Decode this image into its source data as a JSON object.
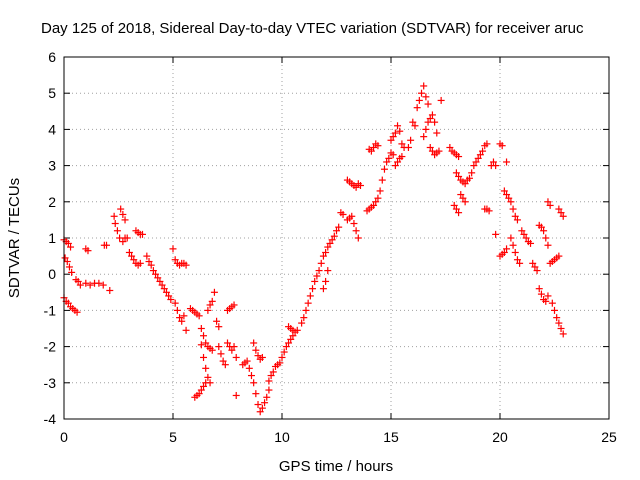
{
  "chart_data": {
    "type": "scatter",
    "title": "Day 125 of 2018, Sidereal Day-to-day VTEC variation (SDTVAR) for receiver aruc",
    "xlabel": "GPS time / hours",
    "ylabel": "SDTVAR / TECUs",
    "xlim": [
      0,
      25
    ],
    "ylim": [
      -4,
      6
    ],
    "xticks": [
      "0",
      "5",
      "10",
      "15",
      "20",
      "25"
    ],
    "yticks": [
      "-4",
      "-3",
      "-2",
      "-1",
      "0",
      "1",
      "2",
      "3",
      "4",
      "5",
      "6"
    ],
    "grid": true,
    "marker": "plus",
    "series": [
      {
        "name": "SDTVAR",
        "color": "#ff0000",
        "points": [
          [
            0.0,
            0.95
          ],
          [
            0.1,
            0.9
          ],
          [
            0.2,
            0.85
          ],
          [
            0.3,
            0.75
          ],
          [
            0.05,
            0.45
          ],
          [
            0.15,
            0.35
          ],
          [
            0.25,
            0.2
          ],
          [
            0.35,
            0.05
          ],
          [
            0.0,
            -0.65
          ],
          [
            0.1,
            -0.75
          ],
          [
            0.2,
            -0.8
          ],
          [
            0.3,
            -0.9
          ],
          [
            0.4,
            -0.95
          ],
          [
            0.5,
            -1.0
          ],
          [
            0.6,
            -1.05
          ],
          [
            0.55,
            -0.15
          ],
          [
            0.65,
            -0.2
          ],
          [
            0.75,
            -0.3
          ],
          [
            1.0,
            0.7
          ],
          [
            1.1,
            0.65
          ],
          [
            1.0,
            -0.25
          ],
          [
            1.2,
            -0.3
          ],
          [
            1.4,
            -0.25
          ],
          [
            1.6,
            -0.25
          ],
          [
            1.8,
            -0.3
          ],
          [
            1.85,
            0.8
          ],
          [
            1.95,
            0.8
          ],
          [
            2.1,
            -0.45
          ],
          [
            2.3,
            1.6
          ],
          [
            2.35,
            1.4
          ],
          [
            2.45,
            1.2
          ],
          [
            2.55,
            1.0
          ],
          [
            2.7,
            0.9
          ],
          [
            2.8,
            1.0
          ],
          [
            2.9,
            1.0
          ],
          [
            2.6,
            1.8
          ],
          [
            2.7,
            1.65
          ],
          [
            2.8,
            1.5
          ],
          [
            3.0,
            0.6
          ],
          [
            3.1,
            0.5
          ],
          [
            3.2,
            0.4
          ],
          [
            3.3,
            0.3
          ],
          [
            3.4,
            0.25
          ],
          [
            3.5,
            0.3
          ],
          [
            3.3,
            1.2
          ],
          [
            3.4,
            1.15
          ],
          [
            3.5,
            1.1
          ],
          [
            3.6,
            1.1
          ],
          [
            3.8,
            0.5
          ],
          [
            3.9,
            0.35
          ],
          [
            4.0,
            0.25
          ],
          [
            4.1,
            0.1
          ],
          [
            4.2,
            0.0
          ],
          [
            4.3,
            -0.1
          ],
          [
            4.4,
            -0.2
          ],
          [
            4.5,
            -0.3
          ],
          [
            4.6,
            -0.4
          ],
          [
            4.7,
            -0.5
          ],
          [
            4.8,
            -0.6
          ],
          [
            4.9,
            -0.7
          ],
          [
            5.0,
            0.7
          ],
          [
            5.1,
            0.4
          ],
          [
            5.2,
            0.3
          ],
          [
            5.3,
            0.25
          ],
          [
            5.4,
            0.3
          ],
          [
            5.5,
            0.3
          ],
          [
            5.6,
            0.25
          ],
          [
            5.1,
            -0.8
          ],
          [
            5.2,
            -1.0
          ],
          [
            5.3,
            -1.2
          ],
          [
            5.4,
            -1.3
          ],
          [
            5.5,
            -1.15
          ],
          [
            5.6,
            -1.55
          ],
          [
            5.8,
            -0.95
          ],
          [
            5.9,
            -1.0
          ],
          [
            6.0,
            -1.05
          ],
          [
            6.1,
            -1.1
          ],
          [
            6.2,
            -1.15
          ],
          [
            6.3,
            -1.5
          ],
          [
            6.4,
            -1.7
          ],
          [
            6.5,
            -1.9
          ],
          [
            6.6,
            -2.0
          ],
          [
            6.7,
            -2.05
          ],
          [
            6.8,
            -2.1
          ],
          [
            6.3,
            -1.95
          ],
          [
            6.4,
            -2.3
          ],
          [
            6.5,
            -2.6
          ],
          [
            6.6,
            -2.85
          ],
          [
            6.7,
            -3.0
          ],
          [
            6.0,
            -3.4
          ],
          [
            6.1,
            -3.35
          ],
          [
            6.2,
            -3.3
          ],
          [
            6.3,
            -3.2
          ],
          [
            6.4,
            -3.1
          ],
          [
            6.5,
            -3.0
          ],
          [
            6.6,
            -1.0
          ],
          [
            6.7,
            -0.85
          ],
          [
            6.8,
            -0.75
          ],
          [
            6.9,
            -0.5
          ],
          [
            7.0,
            -1.3
          ],
          [
            7.1,
            -1.45
          ],
          [
            7.1,
            -2.0
          ],
          [
            7.2,
            -2.2
          ],
          [
            7.3,
            -2.4
          ],
          [
            7.4,
            -2.5
          ],
          [
            7.5,
            -1.0
          ],
          [
            7.6,
            -0.95
          ],
          [
            7.7,
            -0.9
          ],
          [
            7.8,
            -0.85
          ],
          [
            7.5,
            -1.9
          ],
          [
            7.6,
            -2.0
          ],
          [
            7.7,
            -2.1
          ],
          [
            7.8,
            -2.0
          ],
          [
            7.9,
            -2.3
          ],
          [
            7.9,
            -3.35
          ],
          [
            8.2,
            -2.5
          ],
          [
            8.3,
            -2.45
          ],
          [
            8.4,
            -2.4
          ],
          [
            8.5,
            -2.6
          ],
          [
            8.6,
            -2.8
          ],
          [
            8.7,
            -3.0
          ],
          [
            8.8,
            -3.3
          ],
          [
            8.9,
            -3.6
          ],
          [
            9.0,
            -3.8
          ],
          [
            9.1,
            -3.7
          ],
          [
            9.2,
            -3.55
          ],
          [
            9.3,
            -3.4
          ],
          [
            9.4,
            -3.2
          ],
          [
            8.7,
            -1.9
          ],
          [
            8.8,
            -2.1
          ],
          [
            8.9,
            -2.25
          ],
          [
            9.0,
            -2.35
          ],
          [
            9.1,
            -2.3
          ],
          [
            9.4,
            -2.95
          ],
          [
            9.5,
            -2.8
          ],
          [
            9.6,
            -2.7
          ],
          [
            9.7,
            -2.55
          ],
          [
            9.8,
            -2.5
          ],
          [
            9.9,
            -2.45
          ],
          [
            10.0,
            -2.3
          ],
          [
            10.1,
            -2.15
          ],
          [
            10.2,
            -2.0
          ],
          [
            10.3,
            -1.9
          ],
          [
            10.4,
            -1.8
          ],
          [
            10.5,
            -1.7
          ],
          [
            10.3,
            -1.45
          ],
          [
            10.4,
            -1.5
          ],
          [
            10.5,
            -1.55
          ],
          [
            10.6,
            -1.6
          ],
          [
            10.7,
            -1.55
          ],
          [
            10.9,
            -1.35
          ],
          [
            11.0,
            -1.2
          ],
          [
            11.1,
            -1.0
          ],
          [
            11.2,
            -0.8
          ],
          [
            11.3,
            -0.6
          ],
          [
            11.4,
            -0.4
          ],
          [
            11.5,
            -0.2
          ],
          [
            11.6,
            -0.05
          ],
          [
            11.7,
            0.1
          ],
          [
            11.8,
            0.3
          ],
          [
            11.9,
            0.5
          ],
          [
            12.0,
            0.6
          ],
          [
            12.1,
            0.75
          ],
          [
            12.2,
            0.85
          ],
          [
            12.3,
            0.95
          ],
          [
            12.4,
            1.05
          ],
          [
            12.5,
            1.2
          ],
          [
            12.6,
            1.3
          ],
          [
            11.9,
            -0.4
          ],
          [
            12.0,
            -0.2
          ],
          [
            12.1,
            0.1
          ],
          [
            12.7,
            1.7
          ],
          [
            12.8,
            1.65
          ],
          [
            13.0,
            1.5
          ],
          [
            13.1,
            1.55
          ],
          [
            13.2,
            1.6
          ],
          [
            13.3,
            1.4
          ],
          [
            13.4,
            1.2
          ],
          [
            13.5,
            1.0
          ],
          [
            13.0,
            2.6
          ],
          [
            13.1,
            2.55
          ],
          [
            13.2,
            2.5
          ],
          [
            13.3,
            2.45
          ],
          [
            13.4,
            2.4
          ],
          [
            13.5,
            2.5
          ],
          [
            13.6,
            2.45
          ],
          [
            13.9,
            1.75
          ],
          [
            14.0,
            1.8
          ],
          [
            14.1,
            1.85
          ],
          [
            14.2,
            1.9
          ],
          [
            14.3,
            2.0
          ],
          [
            14.4,
            2.1
          ],
          [
            14.5,
            2.3
          ],
          [
            14.0,
            3.45
          ],
          [
            14.1,
            3.4
          ],
          [
            14.2,
            3.5
          ],
          [
            14.3,
            3.6
          ],
          [
            14.4,
            3.55
          ],
          [
            14.6,
            2.6
          ],
          [
            14.7,
            2.9
          ],
          [
            14.8,
            3.1
          ],
          [
            14.9,
            3.2
          ],
          [
            15.0,
            3.35
          ],
          [
            15.1,
            3.3
          ],
          [
            15.0,
            3.7
          ],
          [
            15.1,
            3.8
          ],
          [
            15.2,
            3.9
          ],
          [
            15.3,
            4.1
          ],
          [
            15.4,
            3.95
          ],
          [
            15.5,
            3.6
          ],
          [
            15.6,
            3.5
          ],
          [
            15.2,
            3.0
          ],
          [
            15.3,
            3.1
          ],
          [
            15.4,
            3.2
          ],
          [
            15.5,
            3.25
          ],
          [
            15.8,
            3.5
          ],
          [
            15.9,
            3.7
          ],
          [
            16.0,
            4.2
          ],
          [
            16.1,
            4.1
          ],
          [
            16.2,
            4.6
          ],
          [
            16.3,
            4.8
          ],
          [
            16.4,
            5.0
          ],
          [
            16.5,
            5.2
          ],
          [
            16.6,
            4.9
          ],
          [
            16.7,
            4.7
          ],
          [
            16.5,
            3.8
          ],
          [
            16.6,
            4.0
          ],
          [
            16.7,
            4.2
          ],
          [
            16.8,
            4.3
          ],
          [
            16.9,
            4.4
          ],
          [
            17.0,
            4.2
          ],
          [
            16.8,
            3.5
          ],
          [
            16.9,
            3.4
          ],
          [
            17.0,
            3.3
          ],
          [
            17.1,
            3.35
          ],
          [
            17.2,
            3.4
          ],
          [
            17.3,
            4.8
          ],
          [
            17.1,
            3.9
          ],
          [
            17.7,
            3.5
          ],
          [
            17.8,
            3.4
          ],
          [
            17.9,
            3.35
          ],
          [
            18.0,
            3.3
          ],
          [
            18.1,
            3.25
          ],
          [
            18.0,
            2.8
          ],
          [
            18.1,
            2.7
          ],
          [
            18.2,
            2.6
          ],
          [
            18.3,
            2.55
          ],
          [
            18.4,
            2.5
          ],
          [
            18.5,
            2.6
          ],
          [
            18.6,
            2.65
          ],
          [
            18.7,
            2.8
          ],
          [
            18.8,
            3.0
          ],
          [
            18.9,
            3.1
          ],
          [
            19.0,
            3.2
          ],
          [
            19.1,
            3.3
          ],
          [
            19.2,
            3.4
          ],
          [
            18.2,
            2.2
          ],
          [
            18.3,
            2.1
          ],
          [
            18.4,
            2.0
          ],
          [
            17.9,
            1.9
          ],
          [
            18.0,
            1.8
          ],
          [
            18.1,
            1.7
          ],
          [
            19.3,
            1.8
          ],
          [
            19.4,
            1.8
          ],
          [
            19.5,
            1.75
          ],
          [
            19.3,
            3.55
          ],
          [
            19.4,
            3.6
          ],
          [
            19.6,
            3.0
          ],
          [
            19.7,
            3.1
          ],
          [
            19.8,
            3.0
          ],
          [
            19.8,
            1.1
          ],
          [
            20.0,
            3.6
          ],
          [
            20.1,
            3.55
          ],
          [
            20.3,
            3.1
          ],
          [
            20.0,
            0.5
          ],
          [
            20.1,
            0.55
          ],
          [
            20.2,
            0.6
          ],
          [
            20.3,
            0.7
          ],
          [
            20.2,
            2.3
          ],
          [
            20.3,
            2.2
          ],
          [
            20.4,
            2.1
          ],
          [
            20.5,
            2.0
          ],
          [
            20.6,
            1.8
          ],
          [
            20.7,
            1.6
          ],
          [
            20.8,
            1.5
          ],
          [
            20.5,
            1.0
          ],
          [
            20.6,
            0.8
          ],
          [
            20.7,
            0.6
          ],
          [
            20.8,
            0.4
          ],
          [
            20.9,
            0.3
          ],
          [
            21.0,
            1.2
          ],
          [
            21.1,
            1.1
          ],
          [
            21.2,
            1.0
          ],
          [
            21.3,
            0.9
          ],
          [
            21.4,
            0.85
          ],
          [
            21.5,
            0.3
          ],
          [
            21.6,
            0.2
          ],
          [
            21.7,
            0.1
          ],
          [
            21.8,
            1.35
          ],
          [
            21.9,
            1.3
          ],
          [
            22.0,
            1.2
          ],
          [
            22.1,
            1.0
          ],
          [
            22.2,
            0.8
          ],
          [
            21.8,
            -0.4
          ],
          [
            21.9,
            -0.55
          ],
          [
            22.0,
            -0.7
          ],
          [
            22.1,
            -0.75
          ],
          [
            22.2,
            -0.6
          ],
          [
            22.3,
            0.3
          ],
          [
            22.4,
            0.35
          ],
          [
            22.5,
            0.4
          ],
          [
            22.6,
            0.45
          ],
          [
            22.7,
            0.5
          ],
          [
            22.2,
            2.0
          ],
          [
            22.3,
            1.9
          ],
          [
            22.4,
            -0.8
          ],
          [
            22.5,
            -1.0
          ],
          [
            22.6,
            -1.2
          ],
          [
            22.7,
            -1.35
          ],
          [
            22.8,
            -1.5
          ],
          [
            22.9,
            -1.65
          ],
          [
            22.7,
            1.8
          ],
          [
            22.8,
            1.7
          ],
          [
            22.9,
            1.6
          ]
        ]
      }
    ]
  }
}
